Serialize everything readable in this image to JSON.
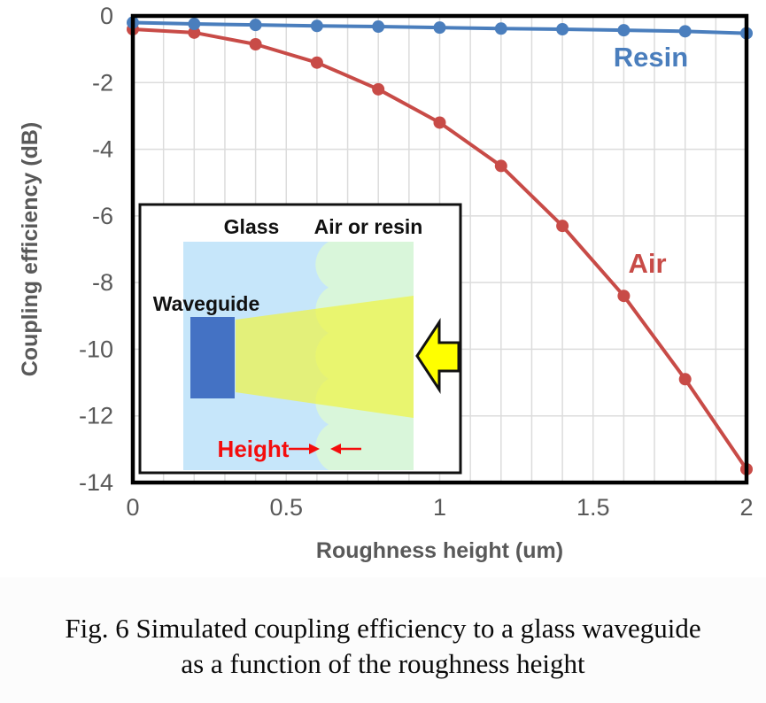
{
  "figure": {
    "caption_line1": "Fig. 6 Simulated coupling efficiency to a glass waveguide",
    "caption_line2": "as a function of the roughness height"
  },
  "chart_data": {
    "type": "line",
    "title": "",
    "xlabel": "Roughness height (um)",
    "ylabel": "Coupling efficiency (dB)",
    "xlim": [
      0,
      2
    ],
    "ylim": [
      -14,
      0
    ],
    "x_tick_labels": [
      "0",
      "0.5",
      "1",
      "1.5",
      "2"
    ],
    "x_tick_values": [
      0,
      0.5,
      1,
      1.5,
      2
    ],
    "y_tick_labels": [
      "0",
      "-2",
      "-4",
      "-6",
      "-8",
      "-10",
      "-12",
      "-14"
    ],
    "y_tick_values": [
      0,
      -2,
      -4,
      -6,
      -8,
      -10,
      -12,
      -14
    ],
    "grid": {
      "x_minor_step": 0.1,
      "y_major_step": 2,
      "color": "#dcdcdc",
      "on": true
    },
    "x": [
      0,
      0.2,
      0.4,
      0.6,
      0.8,
      1.0,
      1.2,
      1.4,
      1.6,
      1.8,
      2.0
    ],
    "series": [
      {
        "name": "Air",
        "color": "#c84b47",
        "values": [
          -0.4,
          -0.5,
          -0.85,
          -1.4,
          -2.2,
          -3.2,
          -4.5,
          -6.3,
          -8.4,
          -10.9,
          -13.6
        ]
      },
      {
        "name": "Resin",
        "color": "#4a7ebd",
        "values": [
          -0.2,
          -0.24,
          -0.27,
          -0.3,
          -0.32,
          -0.35,
          -0.38,
          -0.4,
          -0.43,
          -0.46,
          -0.52
        ]
      }
    ],
    "legend_position": "inline-labels",
    "axis_text_color": "#595959",
    "border_color": "#000000"
  },
  "inset": {
    "label_glass": "Glass",
    "label_medium": "Air or resin",
    "label_waveguide": "Waveguide",
    "label_height": "Height",
    "colors": {
      "box_bg": "#ffffff",
      "box_border": "#111111",
      "glass_region": "#c6e6fa",
      "medium_region": "#d9f6da",
      "waveguide": "#4472c4",
      "beam": "#f0f43c",
      "beam_opacity": "0.68",
      "big_arrow": "#ffff00",
      "annotation_red": "#f40d0d",
      "label_text": "#111111"
    }
  }
}
